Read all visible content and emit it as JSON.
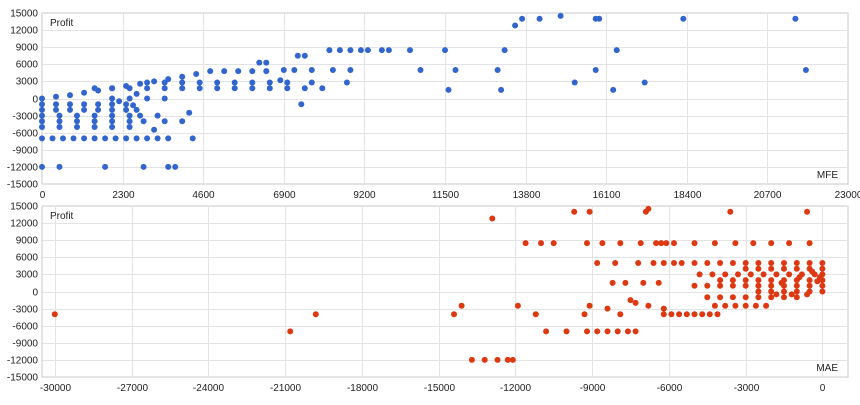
{
  "chart_data": [
    {
      "type": "scatter",
      "legend_label": "Profit",
      "xlabel": "MFE",
      "color": "#3366cc",
      "xlim": [
        0,
        23000
      ],
      "ylim": [
        -15000,
        15000
      ],
      "x_ticks": [
        0,
        2300,
        4600,
        6900,
        9200,
        11500,
        13800,
        16100,
        18400,
        20700,
        23000
      ],
      "y_ticks": [
        -15000,
        -12000,
        -9000,
        -6000,
        -3000,
        0,
        3000,
        6000,
        9000,
        12000,
        15000
      ],
      "grid": true,
      "points": [
        [
          0,
          -12000
        ],
        [
          500,
          -12000
        ],
        [
          1800,
          -12000
        ],
        [
          2900,
          -12000
        ],
        [
          3600,
          -12000
        ],
        [
          3800,
          -12000
        ],
        [
          0,
          -7000
        ],
        [
          300,
          -7000
        ],
        [
          600,
          -7000
        ],
        [
          900,
          -7000
        ],
        [
          1200,
          -7000
        ],
        [
          1500,
          -7000
        ],
        [
          1800,
          -7000
        ],
        [
          2100,
          -7000
        ],
        [
          2400,
          -7000
        ],
        [
          2700,
          -7000
        ],
        [
          3000,
          -7000
        ],
        [
          3300,
          -7000
        ],
        [
          3600,
          -7000
        ],
        [
          4300,
          -7000
        ],
        [
          3200,
          -5500
        ],
        [
          3500,
          -4000
        ],
        [
          4000,
          -4000
        ],
        [
          3300,
          -3000
        ],
        [
          4200,
          -2500
        ],
        [
          0,
          -5000
        ],
        [
          500,
          -5000
        ],
        [
          1000,
          -5000
        ],
        [
          1500,
          -5000
        ],
        [
          2000,
          -5000
        ],
        [
          2500,
          -5000
        ],
        [
          0,
          -4000
        ],
        [
          500,
          -4000
        ],
        [
          1000,
          -4000
        ],
        [
          1500,
          -4000
        ],
        [
          2000,
          -4000
        ],
        [
          2500,
          -4000
        ],
        [
          2900,
          -4000
        ],
        [
          0,
          -3000
        ],
        [
          500,
          -3000
        ],
        [
          1000,
          -3000
        ],
        [
          1500,
          -3000
        ],
        [
          2000,
          -3000
        ],
        [
          2500,
          -3000
        ],
        [
          2800,
          -3000
        ],
        [
          0,
          -2000
        ],
        [
          400,
          -2000
        ],
        [
          800,
          -2000
        ],
        [
          1200,
          -2000
        ],
        [
          1600,
          -2000
        ],
        [
          2000,
          -2000
        ],
        [
          2400,
          -2000
        ],
        [
          2700,
          -2000
        ],
        [
          0,
          -1000
        ],
        [
          400,
          -1000
        ],
        [
          800,
          -1000
        ],
        [
          1200,
          -1000
        ],
        [
          1600,
          -1000
        ],
        [
          2000,
          -1000
        ],
        [
          2400,
          -1000
        ],
        [
          0,
          0
        ],
        [
          400,
          300
        ],
        [
          800,
          600
        ],
        [
          1200,
          1000
        ],
        [
          1600,
          1400
        ],
        [
          2000,
          1800
        ],
        [
          2400,
          2200
        ],
        [
          2800,
          2600
        ],
        [
          3200,
          3000
        ],
        [
          3600,
          3400
        ],
        [
          4000,
          3800
        ],
        [
          4400,
          4300
        ],
        [
          4800,
          4800
        ],
        [
          5200,
          4800
        ],
        [
          5600,
          4800
        ],
        [
          6000,
          4800
        ],
        [
          6400,
          4800
        ],
        [
          1500,
          1800
        ],
        [
          2000,
          1800
        ],
        [
          2500,
          1800
        ],
        [
          3000,
          1800
        ],
        [
          3500,
          1800
        ],
        [
          4000,
          1800
        ],
        [
          4500,
          1800
        ],
        [
          5000,
          1800
        ],
        [
          5500,
          1800
        ],
        [
          6000,
          1800
        ],
        [
          6500,
          1800
        ],
        [
          7000,
          1800
        ],
        [
          7500,
          1800
        ],
        [
          8000,
          1800
        ],
        [
          3000,
          2800
        ],
        [
          3500,
          2800
        ],
        [
          4000,
          2800
        ],
        [
          4500,
          2800
        ],
        [
          5000,
          2800
        ],
        [
          5500,
          2800
        ],
        [
          6000,
          2800
        ],
        [
          6500,
          2800
        ],
        [
          7000,
          2800
        ],
        [
          2000,
          0
        ],
        [
          2500,
          0
        ],
        [
          3000,
          0
        ],
        [
          3500,
          0
        ],
        [
          2200,
          -500
        ],
        [
          2600,
          -1200
        ],
        [
          2700,
          800
        ],
        [
          6200,
          6300
        ],
        [
          6400,
          6300
        ],
        [
          7300,
          7500
        ],
        [
          7500,
          7500
        ],
        [
          6900,
          5000
        ],
        [
          7200,
          5000
        ],
        [
          7700,
          5000
        ],
        [
          8300,
          5000
        ],
        [
          8800,
          5000
        ],
        [
          6800,
          3200
        ],
        [
          7700,
          2800
        ],
        [
          8700,
          2800
        ],
        [
          7400,
          -1000
        ],
        [
          8200,
          8500
        ],
        [
          8500,
          8500
        ],
        [
          8800,
          8500
        ],
        [
          9100,
          8500
        ],
        [
          9300,
          8500
        ],
        [
          9700,
          8500
        ],
        [
          9900,
          8500
        ],
        [
          10500,
          8500
        ],
        [
          11500,
          8500
        ],
        [
          13200,
          8500
        ],
        [
          16400,
          8500
        ],
        [
          10800,
          5000
        ],
        [
          11800,
          5000
        ],
        [
          13000,
          5000
        ],
        [
          15800,
          5000
        ],
        [
          21800,
          5000
        ],
        [
          11600,
          1500
        ],
        [
          13100,
          1500
        ],
        [
          16300,
          1500
        ],
        [
          15200,
          2800
        ],
        [
          17200,
          2800
        ],
        [
          13500,
          12800
        ],
        [
          13700,
          14000
        ],
        [
          14200,
          14000
        ],
        [
          14800,
          14500
        ],
        [
          15800,
          14000
        ],
        [
          15900,
          14000
        ],
        [
          18300,
          14000
        ],
        [
          21500,
          14000
        ]
      ]
    },
    {
      "type": "scatter",
      "legend_label": "Profit",
      "xlabel": "MAE",
      "color": "#dc3912",
      "xlim": [
        -30500,
        1000
      ],
      "ylim": [
        -15000,
        15000
      ],
      "x_ticks": [
        -30000,
        -27000,
        -24000,
        -21000,
        -18000,
        -15000,
        -12000,
        -9000,
        -6000,
        -3000,
        0
      ],
      "y_ticks": [
        -15000,
        -12000,
        -9000,
        -6000,
        -3000,
        0,
        3000,
        6000,
        9000,
        12000,
        15000
      ],
      "grid": true,
      "points": [
        [
          -30000,
          -4000
        ],
        [
          -20800,
          -7000
        ],
        [
          -19800,
          -4000
        ],
        [
          -14400,
          -4000
        ],
        [
          -14100,
          -2500
        ],
        [
          -13700,
          -12000
        ],
        [
          -13200,
          -12000
        ],
        [
          -12700,
          -12000
        ],
        [
          -12300,
          -12000
        ],
        [
          -12100,
          -12000
        ],
        [
          -12900,
          12800
        ],
        [
          -11600,
          8500
        ],
        [
          -11000,
          8500
        ],
        [
          -10500,
          8500
        ],
        [
          -9700,
          14000
        ],
        [
          -9100,
          14000
        ],
        [
          -11900,
          -2500
        ],
        [
          -11200,
          -4000
        ],
        [
          -10800,
          -7000
        ],
        [
          -10000,
          -7000
        ],
        [
          -9300,
          -4000
        ],
        [
          -9100,
          -2500
        ],
        [
          -9200,
          -7000
        ],
        [
          -8800,
          -7000
        ],
        [
          -8400,
          -7000
        ],
        [
          -8000,
          -7000
        ],
        [
          -7600,
          -7000
        ],
        [
          -7300,
          -7000
        ],
        [
          -9200,
          8500
        ],
        [
          -8600,
          8500
        ],
        [
          -7900,
          8500
        ],
        [
          -7100,
          8500
        ],
        [
          -6500,
          8500
        ],
        [
          -6300,
          8500
        ],
        [
          -6100,
          8500
        ],
        [
          -8800,
          5000
        ],
        [
          -8100,
          5000
        ],
        [
          -7200,
          5000
        ],
        [
          -6600,
          5000
        ],
        [
          -6200,
          5000
        ],
        [
          -5800,
          5000
        ],
        [
          -8200,
          1500
        ],
        [
          -7700,
          1500
        ],
        [
          -7000,
          1500
        ],
        [
          -6400,
          1500
        ],
        [
          -7500,
          -1500
        ],
        [
          -6800,
          -2500
        ],
        [
          -6200,
          -3000
        ],
        [
          -8400,
          -3000
        ],
        [
          -7900,
          -4000
        ],
        [
          -7300,
          -2000
        ],
        [
          -6800,
          14500
        ],
        [
          -6900,
          14000
        ],
        [
          -3600,
          14000
        ],
        [
          -600,
          14000
        ],
        [
          -5800,
          8500
        ],
        [
          -5000,
          8500
        ],
        [
          -4200,
          8500
        ],
        [
          -3400,
          8500
        ],
        [
          -2700,
          8500
        ],
        [
          -2000,
          8500
        ],
        [
          -1300,
          8500
        ],
        [
          -500,
          8500
        ],
        [
          -6200,
          -4000
        ],
        [
          -5900,
          -4000
        ],
        [
          -5600,
          -4000
        ],
        [
          -5300,
          -4000
        ],
        [
          -5000,
          -4000
        ],
        [
          -4700,
          -4000
        ],
        [
          -4400,
          -4000
        ],
        [
          -4100,
          -4000
        ],
        [
          -5500,
          5000
        ],
        [
          -5000,
          5000
        ],
        [
          -4500,
          5000
        ],
        [
          -4000,
          5000
        ],
        [
          -3500,
          5000
        ],
        [
          -3000,
          5000
        ],
        [
          -2500,
          5000
        ],
        [
          -2000,
          5000
        ],
        [
          -1500,
          5000
        ],
        [
          -1000,
          5000
        ],
        [
          -500,
          5000
        ],
        [
          0,
          5000
        ],
        [
          -4800,
          3000
        ],
        [
          -4300,
          3000
        ],
        [
          -3800,
          3000
        ],
        [
          -3300,
          3000
        ],
        [
          -2800,
          3000
        ],
        [
          -2300,
          3000
        ],
        [
          -1800,
          3000
        ],
        [
          -1300,
          3000
        ],
        [
          -800,
          3000
        ],
        [
          -300,
          3000
        ],
        [
          0,
          3000
        ],
        [
          -5000,
          1000
        ],
        [
          -4500,
          1000
        ],
        [
          -4000,
          1000
        ],
        [
          -3500,
          1000
        ],
        [
          -3000,
          1000
        ],
        [
          -2500,
          1000
        ],
        [
          -2000,
          1000
        ],
        [
          -1500,
          1000
        ],
        [
          -1000,
          1000
        ],
        [
          -500,
          1000
        ],
        [
          0,
          1000
        ],
        [
          -4500,
          -1000
        ],
        [
          -4000,
          -1000
        ],
        [
          -3500,
          -1000
        ],
        [
          -3000,
          -1000
        ],
        [
          -2500,
          -1000
        ],
        [
          -2000,
          -1000
        ],
        [
          -1500,
          -1000
        ],
        [
          -1000,
          -1000
        ],
        [
          -4200,
          -2500
        ],
        [
          -3800,
          -2500
        ],
        [
          -3400,
          -2500
        ],
        [
          -3000,
          -2500
        ],
        [
          -2600,
          -2500
        ],
        [
          -2200,
          -2500
        ],
        [
          -4000,
          2000
        ],
        [
          -3500,
          2000
        ],
        [
          -3000,
          2000
        ],
        [
          -2500,
          2000
        ],
        [
          -2000,
          2000
        ],
        [
          -1500,
          2000
        ],
        [
          -1000,
          2000
        ],
        [
          -500,
          2000
        ],
        [
          0,
          2000
        ],
        [
          -3000,
          4000
        ],
        [
          -2500,
          4000
        ],
        [
          -2000,
          4000
        ],
        [
          -1500,
          4000
        ],
        [
          -1000,
          4000
        ],
        [
          -500,
          4000
        ],
        [
          0,
          4000
        ],
        [
          -2500,
          0
        ],
        [
          -2000,
          0
        ],
        [
          -1500,
          0
        ],
        [
          -1000,
          0
        ],
        [
          -500,
          0
        ],
        [
          0,
          0
        ],
        [
          -1800,
          -500
        ],
        [
          -1200,
          -500
        ],
        [
          -600,
          -500
        ],
        [
          -1600,
          1500
        ],
        [
          -900,
          2500
        ],
        [
          -400,
          3500
        ],
        [
          -200,
          1800
        ],
        [
          -100,
          2500
        ]
      ]
    }
  ]
}
